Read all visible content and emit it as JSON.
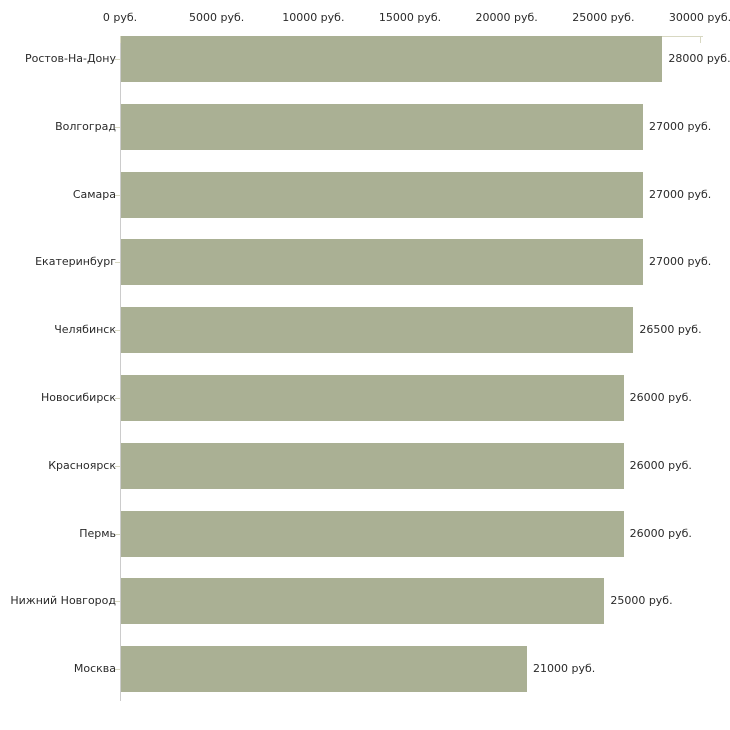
{
  "chart_data": {
    "type": "bar",
    "orientation": "horizontal",
    "title": "",
    "xlabel": "",
    "ylabel": "",
    "categories": [
      "Ростов-На-Дону",
      "Волгоград",
      "Самара",
      "Екатеринбург",
      "Челябинск",
      "Новосибирск",
      "Красноярск",
      "Пермь",
      "Нижний Новгород",
      "Москва"
    ],
    "values": [
      28000,
      27000,
      27000,
      27000,
      26500,
      26000,
      26000,
      26000,
      25000,
      21000
    ],
    "bar_value_labels": [
      "28000 руб.",
      "27000 руб.",
      "27000 руб.",
      "27000 руб.",
      "26500 руб.",
      "26000 руб.",
      "26000 руб.",
      "26000 руб.",
      "25000 руб.",
      "21000 руб."
    ],
    "x_ticks": [
      0,
      5000,
      10000,
      15000,
      20000,
      25000,
      30000
    ],
    "x_tick_labels": [
      "0 руб.",
      "5000 руб.",
      "10000 руб.",
      "15000 руб.",
      "20000 руб.",
      "25000 руб.",
      "30000 руб."
    ],
    "xlim": [
      0,
      30000
    ],
    "value_suffix": " руб.",
    "axis_position": "top",
    "grid": "off",
    "legend": "none"
  },
  "colors": {
    "background": "#ffffff",
    "bar_fill": "#aab094",
    "x_axis_line": "#d8d8c2",
    "x_tick_mark": "#d8d8c2",
    "category_tick": "#d8d8c2",
    "y_axis_line": "#cccccc",
    "text": "#2a2a2a"
  }
}
